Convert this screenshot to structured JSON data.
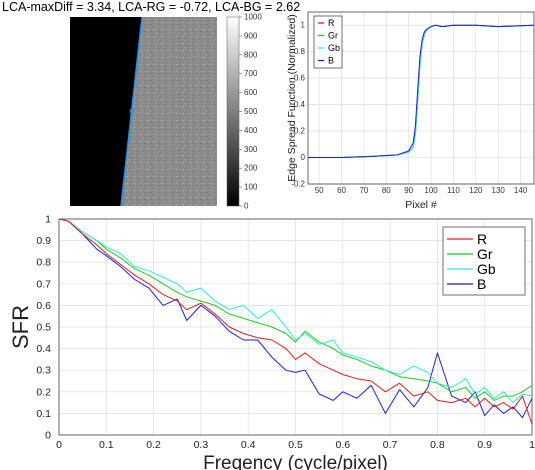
{
  "header": {
    "title": "LCA-maxDiff = 3.34, LCA-RG = -0.72, LCA-BG = 2.62"
  },
  "colorbar": {
    "ticks": [
      "1000",
      "900",
      "800",
      "700",
      "600",
      "500",
      "400",
      "300",
      "200",
      "100",
      "0"
    ]
  },
  "colors": {
    "R": "#e31a1c",
    "Gr": "#22c81e",
    "Gb": "#2ee6e6",
    "B": "#1f1fd6",
    "edge_line": "#1f8fe8"
  },
  "chart_data": [
    {
      "type": "line",
      "title": "",
      "xlabel": "Pixel #",
      "ylabel": "Edge Spread Function (Normalized)",
      "xlim": [
        45,
        146
      ],
      "ylim": [
        -0.2,
        1.1
      ],
      "xticks": [
        "50",
        "60",
        "70",
        "80",
        "90",
        "100",
        "110",
        "120",
        "130",
        "140"
      ],
      "yticks": [
        "-0.2",
        "0",
        "0.2",
        "0.4",
        "0.6",
        "0.8",
        "1"
      ],
      "legend": [
        "R",
        "Gr",
        "Gb",
        "B"
      ],
      "legend_position": "top-left",
      "grid": true,
      "x": [
        45,
        60,
        75,
        85,
        90,
        92,
        93,
        94,
        95,
        96,
        97,
        98,
        99,
        100,
        102,
        105,
        110,
        120,
        130,
        146
      ],
      "series": [
        {
          "name": "R",
          "values": [
            0,
            0,
            0.01,
            0.02,
            0.04,
            0.08,
            0.18,
            0.42,
            0.7,
            0.86,
            0.93,
            0.96,
            0.98,
            0.99,
            1.0,
            0.99,
            1.0,
            1.0,
            0.99,
            1.0
          ]
        },
        {
          "name": "Gr",
          "values": [
            0,
            0,
            0.01,
            0.02,
            0.04,
            0.08,
            0.18,
            0.42,
            0.7,
            0.86,
            0.93,
            0.96,
            0.98,
            0.99,
            1.0,
            0.99,
            1.0,
            1.0,
            0.99,
            1.0
          ]
        },
        {
          "name": "Gb",
          "values": [
            0,
            0,
            0.01,
            0.02,
            0.04,
            0.08,
            0.18,
            0.42,
            0.7,
            0.86,
            0.93,
            0.96,
            0.98,
            0.99,
            1.0,
            0.99,
            1.0,
            1.0,
            0.99,
            1.0
          ]
        },
        {
          "name": "B",
          "values": [
            0,
            0,
            0.01,
            0.02,
            0.05,
            0.11,
            0.24,
            0.5,
            0.76,
            0.89,
            0.95,
            0.97,
            0.98,
            0.99,
            1.0,
            0.99,
            1.0,
            1.0,
            0.99,
            1.0
          ]
        }
      ]
    },
    {
      "type": "line",
      "title": "",
      "xlabel": "Freqency (cycle/pixel)",
      "ylabel": "SFR",
      "xlim": [
        0,
        1
      ],
      "ylim": [
        0,
        1
      ],
      "xticks": [
        "0",
        "0.1",
        "0.2",
        "0.3",
        "0.4",
        "0.5",
        "0.6",
        "0.7",
        "0.8",
        "0.9",
        "1"
      ],
      "yticks": [
        "0",
        "0.1",
        "0.2",
        "0.3",
        "0.4",
        "0.5",
        "0.6",
        "0.7",
        "0.8",
        "0.9",
        "1"
      ],
      "legend": [
        "R",
        "Gr",
        "Gb",
        "B"
      ],
      "legend_position": "top-right",
      "grid": true,
      "x": [
        0,
        0.02,
        0.05,
        0.08,
        0.1,
        0.13,
        0.16,
        0.19,
        0.22,
        0.25,
        0.27,
        0.3,
        0.33,
        0.36,
        0.39,
        0.42,
        0.45,
        0.48,
        0.5,
        0.52,
        0.55,
        0.58,
        0.6,
        0.63,
        0.66,
        0.69,
        0.72,
        0.75,
        0.78,
        0.8,
        0.83,
        0.86,
        0.88,
        0.9,
        0.92,
        0.94,
        0.96,
        0.98,
        1.0
      ],
      "series": [
        {
          "name": "R",
          "values": [
            1.0,
            0.99,
            0.93,
            0.88,
            0.84,
            0.79,
            0.74,
            0.7,
            0.65,
            0.62,
            0.58,
            0.61,
            0.56,
            0.5,
            0.47,
            0.45,
            0.44,
            0.4,
            0.35,
            0.38,
            0.33,
            0.3,
            0.28,
            0.26,
            0.25,
            0.2,
            0.24,
            0.18,
            0.2,
            0.16,
            0.15,
            0.17,
            0.13,
            0.17,
            0.13,
            0.15,
            0.12,
            0.18,
            0.05
          ]
        },
        {
          "name": "Gr",
          "values": [
            1.0,
            0.99,
            0.94,
            0.9,
            0.86,
            0.82,
            0.77,
            0.74,
            0.7,
            0.66,
            0.64,
            0.62,
            0.6,
            0.56,
            0.54,
            0.52,
            0.5,
            0.47,
            0.43,
            0.48,
            0.43,
            0.4,
            0.37,
            0.35,
            0.32,
            0.3,
            0.27,
            0.26,
            0.25,
            0.24,
            0.2,
            0.22,
            0.17,
            0.2,
            0.16,
            0.18,
            0.18,
            0.2,
            0.23
          ]
        },
        {
          "name": "Gb",
          "values": [
            1.0,
            0.99,
            0.94,
            0.9,
            0.87,
            0.84,
            0.78,
            0.76,
            0.73,
            0.7,
            0.66,
            0.68,
            0.62,
            0.58,
            0.6,
            0.54,
            0.58,
            0.5,
            0.44,
            0.47,
            0.42,
            0.44,
            0.38,
            0.36,
            0.34,
            0.3,
            0.28,
            0.32,
            0.29,
            0.24,
            0.22,
            0.26,
            0.19,
            0.22,
            0.17,
            0.2,
            0.15,
            0.19,
            0.18
          ]
        },
        {
          "name": "B",
          "values": [
            1.0,
            0.99,
            0.93,
            0.86,
            0.83,
            0.78,
            0.72,
            0.68,
            0.6,
            0.63,
            0.53,
            0.6,
            0.55,
            0.48,
            0.44,
            0.44,
            0.36,
            0.3,
            0.29,
            0.3,
            0.19,
            0.16,
            0.2,
            0.17,
            0.23,
            0.1,
            0.21,
            0.13,
            0.22,
            0.38,
            0.18,
            0.15,
            0.2,
            0.09,
            0.14,
            0.1,
            0.13,
            0.08,
            0.17
          ]
        }
      ]
    }
  ]
}
